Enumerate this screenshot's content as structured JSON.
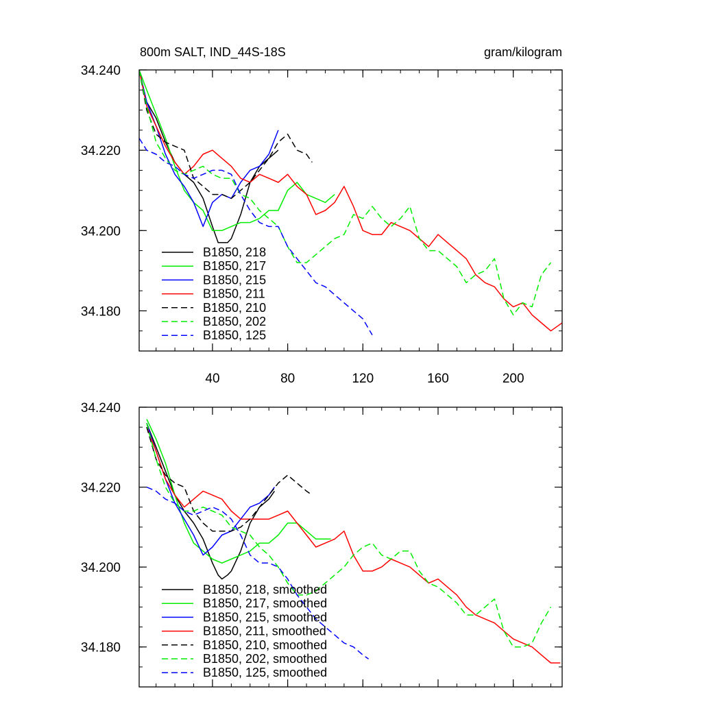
{
  "title_left": "800m SALT, IND_44S-18S",
  "title_right": "gram/kilogram",
  "chart_data": [
    {
      "type": "line",
      "title": "800m SALT, IND_44S-18S",
      "units": "gram/kilogram",
      "xlim": [
        1,
        226
      ],
      "ylim": [
        34.17,
        34.24
      ],
      "xticks": [
        40,
        80,
        120,
        160,
        200
      ],
      "xtick_labels": [
        "40",
        "80",
        "120",
        "160",
        "200"
      ],
      "yticks": [
        34.24,
        34.22,
        34.2,
        34.18
      ],
      "ytick_labels": [
        "34.240",
        "34.220",
        "34.200",
        "34.180"
      ],
      "legend_position": "lower-left",
      "series": [
        {
          "name": "B1850, 218",
          "color": "#000000",
          "dash": false,
          "x": [
            1,
            5,
            10,
            15,
            20,
            25,
            30,
            35,
            40,
            43,
            45,
            48,
            50,
            55,
            60,
            65,
            70,
            75
          ],
          "y": [
            34.24,
            34.232,
            34.228,
            34.222,
            34.217,
            34.214,
            34.212,
            34.208,
            34.201,
            34.197,
            34.197,
            34.197,
            34.198,
            34.204,
            34.212,
            34.216,
            34.218,
            34.22
          ]
        },
        {
          "name": "B1850, 217",
          "color": "#00ee00",
          "dash": false,
          "x": [
            1,
            5,
            10,
            15,
            20,
            25,
            30,
            35,
            40,
            45,
            50,
            55,
            60,
            65,
            70,
            75,
            80,
            85,
            90,
            95,
            100,
            105
          ],
          "y": [
            34.24,
            34.235,
            34.229,
            34.223,
            34.216,
            34.21,
            34.207,
            34.205,
            34.2,
            34.2,
            34.201,
            34.202,
            34.202,
            34.203,
            34.205,
            34.205,
            34.21,
            34.212,
            34.209,
            34.208,
            34.207,
            34.209
          ]
        },
        {
          "name": "B1850, 215",
          "color": "#0000ff",
          "dash": false,
          "x": [
            1,
            5,
            10,
            15,
            20,
            25,
            30,
            35,
            40,
            45,
            50,
            55,
            60,
            65,
            70,
            75
          ],
          "y": [
            34.24,
            34.232,
            34.226,
            34.219,
            34.214,
            34.211,
            34.207,
            34.201,
            34.207,
            34.209,
            34.208,
            34.212,
            34.215,
            34.216,
            34.219,
            34.225
          ]
        },
        {
          "name": "B1850, 211",
          "color": "#ff0000",
          "dash": false,
          "x": [
            1,
            5,
            10,
            15,
            20,
            25,
            30,
            35,
            40,
            45,
            50,
            55,
            60,
            65,
            70,
            75,
            80,
            85,
            90,
            95,
            100,
            105,
            110,
            115,
            120,
            125,
            130,
            135,
            140,
            145,
            150,
            155,
            160,
            165,
            170,
            175,
            180,
            185,
            190,
            195,
            200,
            205,
            210,
            215,
            220,
            226
          ],
          "y": [
            34.24,
            34.231,
            34.226,
            34.221,
            34.217,
            34.214,
            34.216,
            34.219,
            34.22,
            34.218,
            34.216,
            34.213,
            34.212,
            34.214,
            34.213,
            34.212,
            34.214,
            34.211,
            34.209,
            34.204,
            34.205,
            34.207,
            34.211,
            34.206,
            34.2,
            34.199,
            34.199,
            34.202,
            34.201,
            34.2,
            34.198,
            34.196,
            34.199,
            34.197,
            34.195,
            34.193,
            34.189,
            34.187,
            34.186,
            34.183,
            34.181,
            34.182,
            34.179,
            34.177,
            34.175,
            34.177
          ]
        },
        {
          "name": "B1850, 210",
          "color": "#000000",
          "dash": true,
          "x": [
            1,
            5,
            10,
            15,
            20,
            25,
            30,
            35,
            40,
            45,
            50,
            55,
            60,
            65,
            70,
            75,
            80,
            85,
            90,
            93
          ],
          "y": [
            34.24,
            34.23,
            34.224,
            34.222,
            34.221,
            34.22,
            34.213,
            34.211,
            34.209,
            34.209,
            34.208,
            34.21,
            34.212,
            34.215,
            34.218,
            34.222,
            34.224,
            34.22,
            34.219,
            34.217
          ]
        },
        {
          "name": "B1850, 202",
          "color": "#00ee00",
          "dash": true,
          "x": [
            1,
            5,
            10,
            15,
            20,
            25,
            30,
            35,
            40,
            45,
            50,
            55,
            60,
            65,
            70,
            75,
            80,
            85,
            90,
            95,
            100,
            105,
            110,
            115,
            120,
            125,
            130,
            135,
            140,
            145,
            150,
            155,
            160,
            165,
            170,
            175,
            180,
            185,
            190,
            195,
            200,
            205,
            210,
            215,
            220
          ],
          "y": [
            34.24,
            34.231,
            34.222,
            34.218,
            34.215,
            34.214,
            34.215,
            34.216,
            34.214,
            34.213,
            34.213,
            34.209,
            34.208,
            34.205,
            34.203,
            34.201,
            34.196,
            34.192,
            34.192,
            34.194,
            34.196,
            34.198,
            34.199,
            34.204,
            34.203,
            34.206,
            34.203,
            34.201,
            34.203,
            34.206,
            34.198,
            34.195,
            34.195,
            34.193,
            34.191,
            34.187,
            34.189,
            34.19,
            34.193,
            34.183,
            34.179,
            34.182,
            34.181,
            34.189,
            34.192
          ]
        },
        {
          "name": "B1850, 125",
          "color": "#0000ff",
          "dash": true,
          "x": [
            1,
            5,
            10,
            15,
            20,
            25,
            30,
            35,
            40,
            45,
            50,
            55,
            60,
            65,
            70,
            75,
            80,
            85,
            90,
            95,
            100,
            105,
            110,
            115,
            120,
            125
          ],
          "y": [
            34.223,
            34.22,
            34.219,
            34.217,
            34.216,
            34.214,
            34.213,
            34.214,
            34.215,
            34.215,
            34.214,
            34.209,
            34.205,
            34.202,
            34.201,
            34.201,
            34.196,
            34.193,
            34.19,
            34.187,
            34.186,
            34.184,
            34.182,
            34.18,
            34.178,
            34.174
          ]
        }
      ]
    },
    {
      "type": "line",
      "title": "",
      "xlim": [
        1,
        226
      ],
      "ylim": [
        34.17,
        34.24
      ],
      "yticks": [
        34.24,
        34.22,
        34.2,
        34.18
      ],
      "ytick_labels": [
        "34.240",
        "34.220",
        "34.200",
        "34.180"
      ],
      "legend_position": "lower-left",
      "series": [
        {
          "name": "B1850, 218, smoothed",
          "color": "#000000",
          "dash": false,
          "x": [
            5,
            10,
            15,
            20,
            25,
            30,
            35,
            40,
            43,
            45,
            48,
            50,
            55,
            60,
            65,
            70,
            73
          ],
          "y": [
            34.236,
            34.23,
            34.224,
            34.218,
            34.214,
            34.211,
            34.207,
            34.201,
            34.198,
            34.197,
            34.198,
            34.199,
            34.204,
            34.211,
            34.215,
            34.217,
            34.219
          ]
        },
        {
          "name": "B1850, 217, smoothed",
          "color": "#00ee00",
          "dash": false,
          "x": [
            5,
            10,
            15,
            20,
            25,
            30,
            35,
            40,
            45,
            50,
            55,
            60,
            65,
            70,
            75,
            80,
            85,
            90,
            95,
            100,
            103
          ],
          "y": [
            34.237,
            34.232,
            34.226,
            34.218,
            34.211,
            34.206,
            34.204,
            34.202,
            34.201,
            34.202,
            34.203,
            34.204,
            34.206,
            34.206,
            34.208,
            34.211,
            34.211,
            34.209,
            34.207,
            34.207,
            34.207
          ]
        },
        {
          "name": "B1850, 215, smoothed",
          "color": "#0000ff",
          "dash": false,
          "x": [
            5,
            10,
            15,
            20,
            25,
            30,
            35,
            40,
            45,
            50,
            55,
            60,
            65,
            70,
            73
          ],
          "y": [
            34.236,
            34.229,
            34.222,
            34.216,
            34.212,
            34.208,
            34.203,
            34.205,
            34.208,
            34.209,
            34.212,
            34.215,
            34.216,
            34.218,
            34.22
          ]
        },
        {
          "name": "B1850, 211, smoothed",
          "color": "#ff0000",
          "dash": false,
          "x": [
            5,
            10,
            15,
            20,
            25,
            30,
            35,
            40,
            45,
            50,
            55,
            60,
            65,
            70,
            75,
            80,
            85,
            90,
            95,
            100,
            105,
            110,
            115,
            120,
            125,
            130,
            135,
            140,
            145,
            150,
            155,
            160,
            165,
            170,
            175,
            180,
            185,
            190,
            195,
            200,
            205,
            210,
            215,
            220,
            225
          ],
          "y": [
            34.235,
            34.229,
            34.222,
            34.218,
            34.215,
            34.217,
            34.219,
            34.218,
            34.217,
            34.214,
            34.212,
            34.212,
            34.212,
            34.212,
            34.213,
            34.214,
            34.211,
            34.208,
            34.205,
            34.206,
            34.207,
            34.209,
            34.203,
            34.199,
            34.199,
            34.2,
            34.202,
            34.201,
            34.2,
            34.198,
            34.196,
            34.197,
            34.195,
            34.193,
            34.19,
            34.188,
            34.187,
            34.186,
            34.184,
            34.182,
            34.181,
            34.18,
            34.178,
            34.176,
            34.176
          ]
        },
        {
          "name": "B1850, 210, smoothed",
          "color": "#000000",
          "dash": true,
          "x": [
            5,
            10,
            15,
            20,
            25,
            30,
            35,
            40,
            45,
            50,
            55,
            60,
            65,
            70,
            75,
            80,
            85,
            90,
            93
          ],
          "y": [
            34.235,
            34.227,
            34.223,
            34.221,
            34.22,
            34.214,
            34.211,
            34.209,
            34.209,
            34.209,
            34.21,
            34.212,
            34.215,
            34.218,
            34.221,
            34.223,
            34.221,
            34.219,
            34.218
          ]
        },
        {
          "name": "B1850, 202, smoothed",
          "color": "#00ee00",
          "dash": true,
          "x": [
            5,
            10,
            15,
            20,
            25,
            30,
            35,
            40,
            45,
            50,
            55,
            60,
            65,
            70,
            75,
            80,
            85,
            90,
            95,
            100,
            105,
            110,
            115,
            120,
            125,
            130,
            135,
            140,
            145,
            150,
            155,
            160,
            165,
            170,
            175,
            180,
            185,
            190,
            195,
            200,
            205,
            210,
            215,
            220
          ],
          "y": [
            34.236,
            34.227,
            34.22,
            34.216,
            34.214,
            34.214,
            34.215,
            34.214,
            34.213,
            34.21,
            34.209,
            34.208,
            34.205,
            34.203,
            34.2,
            34.196,
            34.193,
            34.193,
            34.194,
            34.196,
            34.198,
            34.2,
            34.203,
            34.205,
            34.206,
            34.203,
            34.202,
            34.204,
            34.204,
            34.199,
            34.196,
            34.195,
            34.193,
            34.191,
            34.188,
            34.188,
            34.19,
            34.192,
            34.184,
            34.18,
            34.18,
            34.181,
            34.186,
            34.19
          ]
        },
        {
          "name": "B1850, 125, smoothed",
          "color": "#0000ff",
          "dash": true,
          "x": [
            5,
            10,
            15,
            20,
            25,
            30,
            35,
            40,
            45,
            50,
            55,
            60,
            65,
            70,
            75,
            80,
            85,
            90,
            95,
            100,
            105,
            110,
            115,
            120,
            123
          ],
          "y": [
            34.22,
            34.219,
            34.217,
            34.216,
            34.214,
            34.213,
            34.214,
            34.215,
            34.214,
            34.212,
            34.208,
            34.203,
            34.201,
            34.201,
            34.2,
            34.197,
            34.193,
            34.19,
            34.187,
            34.185,
            34.183,
            34.181,
            34.18,
            34.178,
            34.177
          ]
        }
      ]
    }
  ]
}
